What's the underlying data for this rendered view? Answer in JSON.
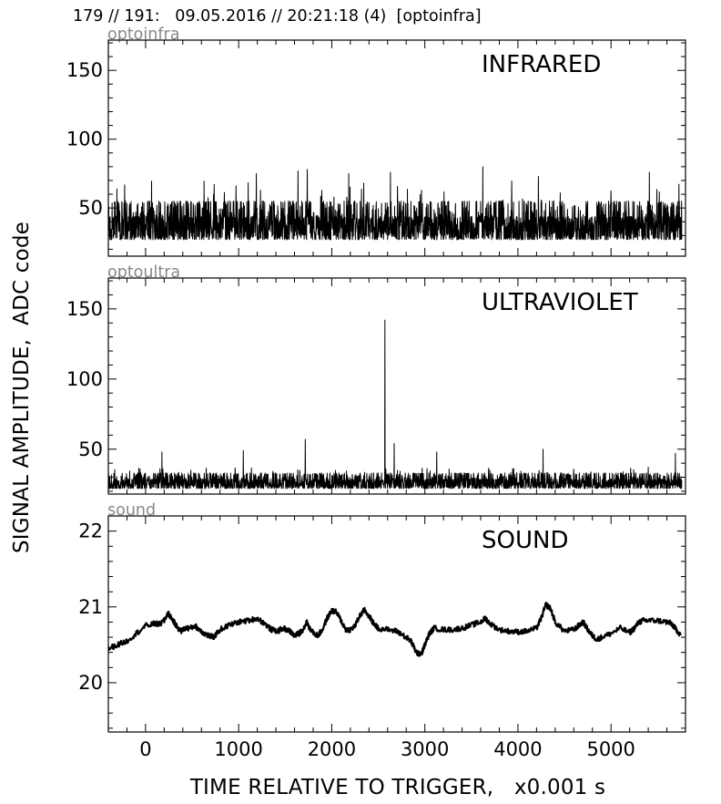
{
  "header": {
    "title": "179 // 191:   09.05.2016 // 20:21:18 (4)  [optoinfra]"
  },
  "ylabel": "SIGNAL AMPLITUDE,  ADC code",
  "xlabel": "TIME RELATIVE TO TRIGGER,   x0.001 s",
  "chart_data": [
    {
      "type": "line",
      "channel": "optoinfra",
      "title": "INFRARED",
      "xlim": [
        -400,
        5800
      ],
      "ylim": [
        15,
        172
      ],
      "yticks": [
        50,
        100,
        150
      ],
      "xticks": [
        0,
        1000,
        2000,
        3000,
        4000,
        5000
      ],
      "noise": {
        "baseline": 40,
        "band": [
          27,
          55
        ],
        "min": 22,
        "max": 80
      },
      "peaks": [
        {
          "x": 1200,
          "y": 75
        },
        {
          "x": 1650,
          "y": 77
        },
        {
          "x": 1750,
          "y": 78
        },
        {
          "x": 2200,
          "y": 75
        },
        {
          "x": 2650,
          "y": 76
        },
        {
          "x": 3650,
          "y": 80
        },
        {
          "x": 4250,
          "y": 73
        },
        {
          "x": 5450,
          "y": 76
        }
      ]
    },
    {
      "type": "line",
      "channel": "optoultra",
      "title": "ULTRAVIOLET",
      "xlim": [
        -400,
        5800
      ],
      "ylim": [
        18,
        172
      ],
      "yticks": [
        50,
        100,
        150
      ],
      "xticks": [
        0,
        1000,
        2000,
        3000,
        4000,
        5000
      ],
      "noise": {
        "baseline": 27,
        "band": [
          22,
          33
        ],
        "min": 20,
        "max": 40
      },
      "peaks": [
        {
          "x": 180,
          "y": 48
        },
        {
          "x": 1060,
          "y": 49
        },
        {
          "x": 1730,
          "y": 57
        },
        {
          "x": 2590,
          "y": 142
        },
        {
          "x": 2690,
          "y": 54
        },
        {
          "x": 3150,
          "y": 48
        },
        {
          "x": 4300,
          "y": 50
        },
        {
          "x": 5730,
          "y": 47
        }
      ]
    },
    {
      "type": "line",
      "channel": "sound",
      "title": "SOUND",
      "xlim": [
        -400,
        5800
      ],
      "ylim": [
        19.35,
        22.2
      ],
      "yticks": [
        20,
        21,
        22
      ],
      "xticks": [
        0,
        1000,
        2000,
        3000,
        4000,
        5000
      ],
      "x": [
        -400,
        -300,
        -200,
        -100,
        0,
        100,
        150,
        200,
        240,
        280,
        330,
        380,
        430,
        480,
        530,
        580,
        630,
        680,
        730,
        800,
        900,
        1000,
        1100,
        1200,
        1280,
        1350,
        1420,
        1480,
        1550,
        1600,
        1650,
        1700,
        1730,
        1780,
        1850,
        1900,
        1950,
        2000,
        2050,
        2100,
        2150,
        2200,
        2250,
        2300,
        2350,
        2400,
        2450,
        2500,
        2600,
        2700,
        2800,
        2850,
        2900,
        2930,
        2970,
        3000,
        3050,
        3100,
        3200,
        3300,
        3400,
        3500,
        3600,
        3650,
        3700,
        3800,
        3900,
        4000,
        4100,
        4200,
        4250,
        4300,
        4350,
        4400,
        4500,
        4600,
        4650,
        4700,
        4750,
        4800,
        4850,
        4900,
        5000,
        5100,
        5200,
        5250,
        5300,
        5350,
        5400,
        5500,
        5600,
        5650,
        5700,
        5750
      ],
      "y": [
        20.45,
        20.5,
        20.55,
        20.65,
        20.75,
        20.78,
        20.77,
        20.82,
        20.92,
        20.85,
        20.75,
        20.68,
        20.72,
        20.72,
        20.75,
        20.7,
        20.65,
        20.62,
        20.6,
        20.7,
        20.76,
        20.8,
        20.82,
        20.85,
        20.78,
        20.7,
        20.68,
        20.72,
        20.68,
        20.62,
        20.65,
        20.72,
        20.8,
        20.68,
        20.62,
        20.7,
        20.85,
        20.95,
        20.93,
        20.82,
        20.7,
        20.7,
        20.75,
        20.88,
        20.96,
        20.88,
        20.78,
        20.72,
        20.7,
        20.68,
        20.6,
        20.55,
        20.42,
        20.38,
        20.4,
        20.5,
        20.65,
        20.72,
        20.7,
        20.7,
        20.72,
        20.76,
        20.8,
        20.85,
        20.78,
        20.7,
        20.68,
        20.67,
        20.68,
        20.72,
        20.85,
        21.03,
        20.98,
        20.8,
        20.68,
        20.7,
        20.75,
        20.8,
        20.7,
        20.62,
        20.57,
        20.6,
        20.65,
        20.72,
        20.66,
        20.72,
        20.8,
        20.82,
        20.82,
        20.82,
        20.8,
        20.78,
        20.7,
        20.63
      ]
    }
  ]
}
